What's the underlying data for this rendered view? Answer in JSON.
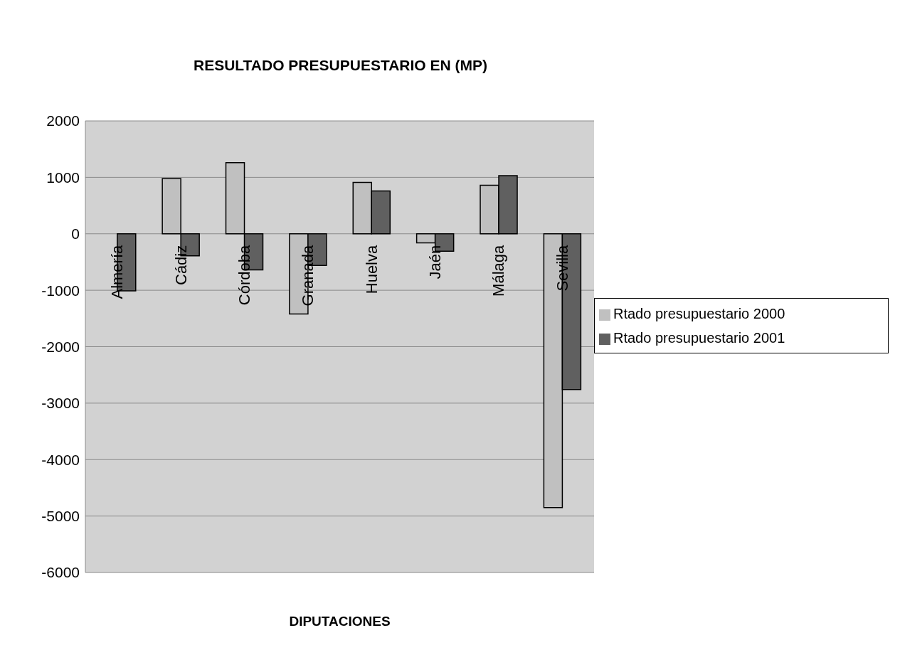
{
  "chart_data": {
    "type": "bar",
    "title": "RESULTADO PRESUPUESTARIO EN (MP)",
    "xlabel": "DIPUTACIONES",
    "categories": [
      "Almería",
      "Cádiz",
      "Córdoba",
      "Granada",
      "Huelva",
      "Jaén",
      "Málaga",
      "Sevilla"
    ],
    "series": [
      {
        "name": "Rtado presupuestario 2000",
        "color": "#c0c0c0",
        "values": [
          null,
          980,
          1260,
          -1420,
          910,
          -160,
          860,
          -4850
        ]
      },
      {
        "name": "Rtado presupuestario 2001",
        "color": "#606060",
        "values": [
          -1010,
          -390,
          -640,
          -560,
          760,
          -310,
          1030,
          -2760
        ]
      }
    ],
    "ylim": [
      -6000,
      2000
    ],
    "yticks": [
      -6000,
      -5000,
      -4000,
      -3000,
      -2000,
      -1000,
      0,
      1000,
      2000
    ],
    "grid": "y",
    "legend": "right"
  }
}
